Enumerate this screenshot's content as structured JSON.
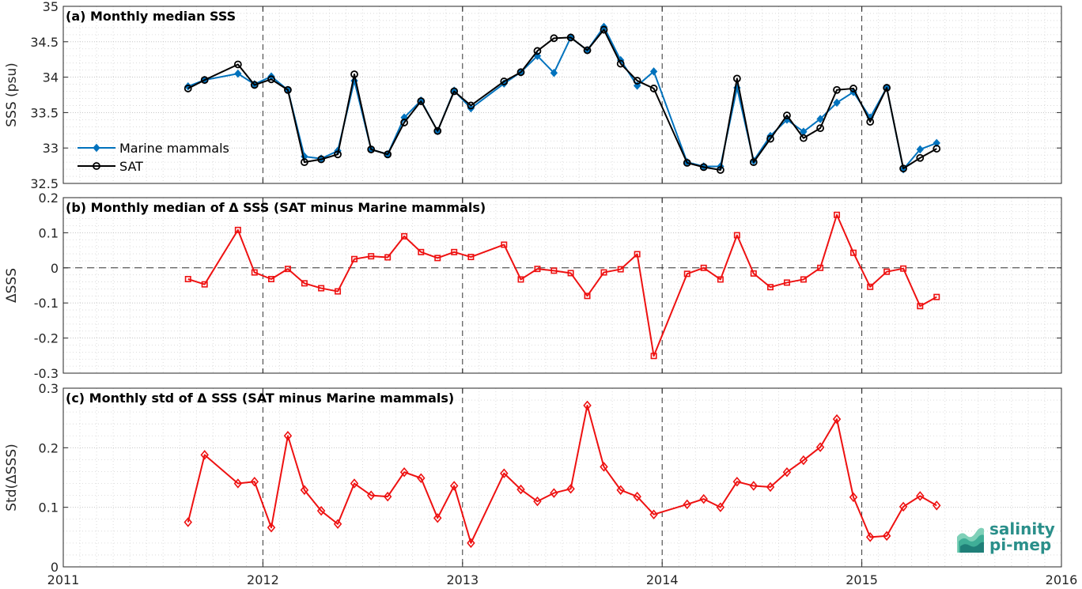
{
  "chart_data": [
    {
      "type": "line",
      "panel_title": "(a) Monthly median SSS",
      "ylabel": "SSS (psu)",
      "ylim": [
        32.5,
        35
      ],
      "yticks": [
        "32.5",
        "33",
        "33.5",
        "34",
        "34.5",
        "35"
      ],
      "legend": {
        "position": "lower-left",
        "entries": [
          "Marine mammals",
          "SAT"
        ]
      },
      "grid": true,
      "series": [
        {
          "name": "Marine mammals",
          "color": "#0072BD",
          "marker": "diamond-filled",
          "x": [
            2011.625,
            2011.708,
            2011.875,
            2011.958,
            2012.042,
            2012.125,
            2012.208,
            2012.292,
            2012.375,
            2012.458,
            2012.542,
            2012.625,
            2012.708,
            2012.792,
            2012.875,
            2012.958,
            2013.042,
            2013.208,
            2013.292,
            2013.375,
            2013.458,
            2013.542,
            2013.625,
            2013.708,
            2013.792,
            2013.875,
            2013.958,
            2014.125,
            2014.208,
            2014.292,
            2014.375,
            2014.458,
            2014.542,
            2014.625,
            2014.708,
            2014.792,
            2014.875,
            2014.958,
            2015.042,
            2015.125,
            2015.208,
            2015.292,
            2015.375
          ],
          "y": [
            33.87,
            33.96,
            34.05,
            33.9,
            34.01,
            33.82,
            32.88,
            32.85,
            32.96,
            33.95,
            32.98,
            32.91,
            33.43,
            33.67,
            33.24,
            33.81,
            33.56,
            33.91,
            34.07,
            34.3,
            34.06,
            34.56,
            34.38,
            34.71,
            34.24,
            33.88,
            34.08,
            32.8,
            32.74,
            32.74,
            33.85,
            32.82,
            33.17,
            33.4,
            33.23,
            33.41,
            33.64,
            33.79,
            33.43,
            33.85,
            32.7,
            32.98,
            33.07
          ]
        },
        {
          "name": "SAT",
          "color": "#000000",
          "marker": "circle-open",
          "x": [
            2011.625,
            2011.708,
            2011.875,
            2011.958,
            2012.042,
            2012.125,
            2012.208,
            2012.292,
            2012.375,
            2012.458,
            2012.542,
            2012.625,
            2012.708,
            2012.792,
            2012.875,
            2012.958,
            2013.042,
            2013.208,
            2013.292,
            2013.375,
            2013.458,
            2013.542,
            2013.625,
            2013.708,
            2013.792,
            2013.875,
            2013.958,
            2014.125,
            2014.208,
            2014.292,
            2014.375,
            2014.458,
            2014.542,
            2014.625,
            2014.708,
            2014.792,
            2014.875,
            2014.958,
            2015.042,
            2015.125,
            2015.208,
            2015.292,
            2015.375
          ],
          "y": [
            33.84,
            33.96,
            34.18,
            33.89,
            33.97,
            33.82,
            32.8,
            32.84,
            32.91,
            34.04,
            32.98,
            32.91,
            33.36,
            33.66,
            33.24,
            33.8,
            33.6,
            33.94,
            34.07,
            34.37,
            34.55,
            34.56,
            34.38,
            34.67,
            34.19,
            33.95,
            33.84,
            32.79,
            32.73,
            32.69,
            33.98,
            32.8,
            33.13,
            33.46,
            33.14,
            33.28,
            33.82,
            33.84,
            33.37,
            33.85,
            32.71,
            32.86,
            32.99
          ]
        }
      ]
    },
    {
      "type": "line",
      "panel_title": "(b) Monthly median of Δ SSS (SAT minus Marine mammals)",
      "ylabel": "ΔSSS",
      "ylim": [
        -0.3,
        0.2
      ],
      "yticks": [
        "-0.3",
        "-0.2",
        "-0.1",
        "0",
        "0.1",
        "0.2"
      ],
      "zero_line": true,
      "grid": true,
      "series": [
        {
          "name": "",
          "color": "#EE1111",
          "marker": "square-open",
          "x": [
            2011.625,
            2011.708,
            2011.875,
            2011.958,
            2012.042,
            2012.125,
            2012.208,
            2012.292,
            2012.375,
            2012.458,
            2012.542,
            2012.625,
            2012.708,
            2012.792,
            2012.875,
            2012.958,
            2013.042,
            2013.208,
            2013.292,
            2013.375,
            2013.458,
            2013.542,
            2013.625,
            2013.708,
            2013.792,
            2013.875,
            2013.958,
            2014.125,
            2014.208,
            2014.292,
            2014.375,
            2014.458,
            2014.542,
            2014.625,
            2014.708,
            2014.792,
            2014.875,
            2014.958,
            2015.042,
            2015.125,
            2015.208,
            2015.292,
            2015.375
          ],
          "y": [
            -0.032,
            -0.047,
            0.108,
            -0.013,
            -0.032,
            -0.003,
            -0.044,
            -0.058,
            -0.067,
            0.025,
            0.033,
            0.03,
            0.09,
            0.045,
            0.028,
            0.045,
            0.031,
            0.066,
            -0.033,
            -0.003,
            -0.008,
            -0.015,
            -0.08,
            -0.013,
            -0.004,
            0.039,
            -0.251,
            -0.017,
            0.0,
            -0.033,
            0.093,
            -0.016,
            -0.055,
            -0.042,
            -0.033,
            0.0,
            0.151,
            0.043,
            -0.054,
            -0.011,
            -0.002,
            -0.109,
            -0.083
          ]
        }
      ]
    },
    {
      "type": "line",
      "panel_title": "(c) Monthly std of Δ SSS (SAT minus Marine mammals)",
      "ylabel": "Std(ΔSSS)",
      "ylim": [
        0,
        0.3
      ],
      "yticks": [
        "0",
        "0.1",
        "0.2",
        "0.3"
      ],
      "xlim": [
        2011,
        2016
      ],
      "xticks": [
        "2011",
        "2012",
        "2013",
        "2014",
        "2015",
        "2016"
      ],
      "grid": true,
      "series": [
        {
          "name": "",
          "color": "#EE1111",
          "marker": "diamond-open",
          "x": [
            2011.625,
            2011.708,
            2011.875,
            2011.958,
            2012.042,
            2012.125,
            2012.208,
            2012.292,
            2012.375,
            2012.458,
            2012.542,
            2012.625,
            2012.708,
            2012.792,
            2012.875,
            2012.958,
            2013.042,
            2013.208,
            2013.292,
            2013.375,
            2013.458,
            2013.542,
            2013.625,
            2013.708,
            2013.792,
            2013.875,
            2013.958,
            2014.125,
            2014.208,
            2014.292,
            2014.375,
            2014.458,
            2014.542,
            2014.625,
            2014.708,
            2014.792,
            2014.875,
            2014.958,
            2015.042,
            2015.125,
            2015.208,
            2015.292,
            2015.375
          ],
          "y": [
            0.075,
            0.188,
            0.14,
            0.143,
            0.066,
            0.22,
            0.129,
            0.094,
            0.072,
            0.14,
            0.12,
            0.118,
            0.159,
            0.149,
            0.082,
            0.136,
            0.04,
            0.157,
            0.13,
            0.11,
            0.124,
            0.131,
            0.271,
            0.168,
            0.129,
            0.118,
            0.088,
            0.105,
            0.114,
            0.1,
            0.143,
            0.136,
            0.134,
            0.159,
            0.179,
            0.201,
            0.248,
            0.117,
            0.05,
            0.052,
            0.101,
            0.119,
            0.103
          ]
        }
      ]
    }
  ],
  "logo": {
    "line1": "salinity",
    "line2": "pi-mep"
  }
}
